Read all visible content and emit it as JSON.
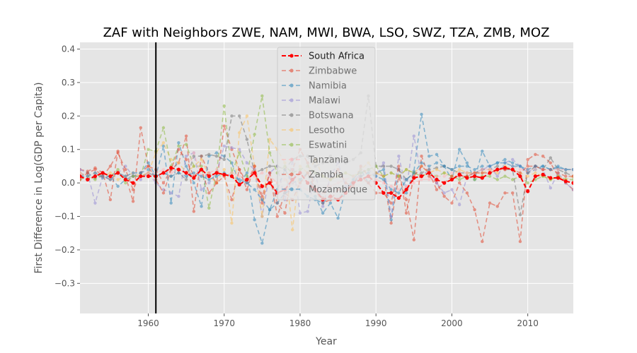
{
  "chart_data": {
    "type": "line",
    "title": "ZAF with Neighbors ZWE, NAM, MWI, BWA, LSO, SWZ, TZA, ZMB, MOZ",
    "xlabel": "Year",
    "ylabel": "First Difference in Log(GDP per Capita)",
    "xlim": [
      1951,
      2016
    ],
    "ylim": [
      -0.39,
      0.42
    ],
    "xticks": [
      1960,
      1970,
      1980,
      1990,
      2000,
      2010
    ],
    "yticks": [
      -0.3,
      -0.2,
      -0.1,
      0.0,
      0.1,
      0.2,
      0.3,
      0.4
    ],
    "xtick_labels": [
      "1960",
      "1970",
      "1980",
      "1990",
      "2000",
      "2010"
    ],
    "ytick_labels": [
      "−0.3",
      "−0.2",
      "−0.1",
      "0.0",
      "0.1",
      "0.2",
      "0.3",
      "0.4"
    ],
    "vline_x": 1961,
    "grid": true,
    "legend_position": "upper-center",
    "series": [
      {
        "name": "South Africa",
        "color": "#ff0000",
        "x_start": 1951,
        "values": [
          0.02,
          0.01,
          0.02,
          0.03,
          0.02,
          0.03,
          0.01,
          0.0,
          0.02,
          0.02,
          0.02,
          0.03,
          0.045,
          0.04,
          0.03,
          0.015,
          0.04,
          0.02,
          0.03,
          0.025,
          0.02,
          -0.005,
          0.01,
          0.03,
          -0.01,
          0.0,
          -0.03,
          -0.02,
          0.01,
          0.03,
          0.0,
          -0.02,
          -0.05,
          -0.04,
          -0.05,
          -0.03,
          0.0,
          0.01,
          0.02,
          0.0,
          -0.03,
          -0.03,
          -0.045,
          -0.02,
          0.015,
          0.02,
          0.03,
          0.01,
          0.0,
          0.01,
          0.025,
          0.015,
          0.02,
          0.015,
          0.03,
          0.04,
          0.045,
          0.04,
          0.02,
          -0.025,
          0.02,
          0.025,
          0.015,
          0.015,
          0.005,
          0.0
        ]
      },
      {
        "name": "Zimbabwe",
        "color": "#e24a33",
        "x_start": 1951,
        "values": [
          0.04,
          0.035,
          0.045,
          0.03,
          -0.05,
          0.095,
          0.02,
          -0.055,
          0.165,
          0.05,
          0.04,
          0.0,
          0.04,
          0.06,
          0.14,
          -0.085,
          0.08,
          0.03,
          0.0,
          0.17,
          0.1,
          0.04,
          0.0,
          0.05,
          -0.04,
          0.03,
          -0.06,
          -0.09,
          0.04,
          0.1,
          0.06,
          -0.02,
          -0.045,
          0.01,
          0.04,
          0.0,
          -0.01,
          0.05,
          0.02,
          0.03,
          0.02,
          -0.12,
          0.02,
          -0.05,
          -0.17,
          0.08,
          0.02,
          0.0,
          -0.04,
          -0.06,
          0.0,
          -0.03,
          -0.08,
          -0.175,
          -0.06,
          -0.07,
          -0.03,
          -0.03,
          -0.175,
          0.07,
          0.085,
          0.08,
          0.06,
          0.02,
          0.0,
          -0.02
        ]
      },
      {
        "name": "Namibia",
        "color": "#348abd",
        "x_start": 1951,
        "values": [
          0.03,
          0.02,
          0.03,
          0.015,
          0.02,
          -0.01,
          0.01,
          0.02,
          0.03,
          0.06,
          0.02,
          0.11,
          -0.06,
          0.12,
          0.05,
          0.0,
          -0.07,
          0.08,
          0.09,
          0.08,
          0.06,
          0.0,
          0.03,
          -0.11,
          -0.18,
          -0.08,
          -0.02,
          0.04,
          0.0,
          0.01,
          0.03,
          -0.04,
          -0.09,
          -0.06,
          -0.105,
          -0.02,
          0.01,
          0.04,
          0.0,
          0.03,
          0.04,
          -0.11,
          0.04,
          -0.03,
          0.035,
          0.205,
          0.08,
          0.085,
          0.05,
          0.01,
          0.1,
          0.06,
          0.01,
          0.095,
          0.05,
          0.06,
          0.07,
          0.06,
          0.05,
          0.03,
          0.04,
          0.05,
          0.04,
          0.045,
          0.04,
          0.04
        ]
      },
      {
        "name": "Malawi",
        "color": "#988ed5",
        "x_start": 1951,
        "values": [
          0.04,
          0.03,
          -0.06,
          0.02,
          0.01,
          0.03,
          0.05,
          0.02,
          0.01,
          0.03,
          0.0,
          -0.02,
          -0.03,
          -0.04,
          0.08,
          0.09,
          -0.02,
          0.0,
          0.03,
          0.11,
          0.105,
          0.1,
          0.06,
          0.04,
          -0.1,
          0.03,
          0.05,
          -0.05,
          0.07,
          -0.09,
          -0.085,
          0.03,
          -0.07,
          0.02,
          0.06,
          -0.01,
          0.0,
          0.03,
          0.04,
          0.02,
          0.06,
          -0.1,
          0.08,
          -0.02,
          0.14,
          0.02,
          0.04,
          0.0,
          -0.03,
          -0.02,
          -0.065,
          0.02,
          0.03,
          0.04,
          0.05,
          0.02,
          0.06,
          0.07,
          0.05,
          0.03,
          0.05,
          0.04,
          -0.015,
          0.03,
          0.0,
          -0.02
        ]
      },
      {
        "name": "Botswana",
        "color": "#777777",
        "x_start": 1951,
        "values": [
          0.02,
          0.03,
          0.015,
          0.02,
          0.01,
          0.03,
          0.015,
          0.02,
          0.02,
          0.03,
          0.02,
          0.03,
          0.02,
          0.03,
          0.01,
          0.08,
          0.08,
          0.085,
          0.08,
          0.07,
          0.2,
          0.2,
          0.13,
          0.03,
          0.04,
          0.05,
          0.05,
          0.04,
          0.07,
          0.08,
          0.08,
          0.05,
          0.06,
          0.08,
          0.07,
          0.06,
          0.07,
          0.09,
          0.26,
          0.05,
          0.05,
          0.05,
          0.04,
          0.01,
          0.03,
          0.03,
          0.04,
          0.045,
          0.05,
          0.04,
          0.03,
          0.03,
          0.03,
          0.04,
          0.04,
          0.05,
          0.04,
          0.04,
          -0.095,
          0.03,
          0.05,
          0.04,
          0.075,
          0.04,
          0.03,
          0.02
        ]
      },
      {
        "name": "Lesotho",
        "color": "#fbc15e",
        "x_start": 1951,
        "values": [
          0.03,
          0.02,
          0.03,
          0.02,
          0.03,
          0.01,
          0.02,
          0.03,
          0.02,
          0.03,
          0.09,
          0.12,
          0.07,
          0.06,
          0.03,
          0.05,
          0.07,
          0.02,
          0.0,
          0.04,
          -0.12,
          0.15,
          0.2,
          0.05,
          -0.1,
          0.13,
          0.1,
          0.06,
          -0.14,
          0.05,
          0.03,
          0.07,
          0.02,
          0.01,
          0.02,
          0.03,
          0.02,
          0.04,
          0.06,
          0.03,
          0.02,
          0.03,
          0.02,
          0.04,
          0.03,
          0.05,
          0.03,
          0.04,
          0.03,
          0.02,
          0.04,
          0.03,
          0.03,
          0.03,
          0.04,
          0.03,
          0.05,
          0.04,
          0.03,
          0.02,
          0.03,
          0.02,
          0.01,
          0.02,
          0.01,
          0.02
        ]
      },
      {
        "name": "Eswatini",
        "color": "#8eba42",
        "x_start": 1951,
        "values": [
          0.01,
          0.02,
          0.01,
          0.03,
          0.02,
          0.04,
          0.0,
          0.02,
          0.02,
          0.1,
          0.095,
          0.165,
          0.05,
          0.11,
          0.115,
          0.05,
          0.05,
          -0.075,
          0.03,
          0.23,
          0.03,
          0.09,
          0.02,
          0.145,
          0.26,
          0.09,
          0.03,
          0.05,
          0.03,
          0.04,
          0.05,
          0.03,
          0.02,
          0.01,
          0.02,
          0.03,
          0.02,
          0.03,
          0.04,
          0.05,
          0.02,
          0.03,
          0.02,
          0.04,
          0.03,
          0.02,
          0.03,
          0.02,
          0.03,
          0.02,
          0.01,
          0.02,
          0.01,
          0.02,
          0.02,
          0.01,
          0.02,
          0.01,
          0.02,
          0.0,
          0.01,
          0.02,
          0.01,
          0.02,
          0.01,
          0.01
        ]
      },
      {
        "name": "Tanzania",
        "color": "#ffb5b8",
        "x_start": 1951,
        "values": [
          0.03,
          0.02,
          0.03,
          0.02,
          0.02,
          0.03,
          0.02,
          0.03,
          0.02,
          0.03,
          0.03,
          0.04,
          0.03,
          0.04,
          0.03,
          0.09,
          0.02,
          0.03,
          0.04,
          0.02,
          0.03,
          0.02,
          0.01,
          0.02,
          0.03,
          0.02,
          0.0,
          0.01,
          0.0,
          -0.01,
          -0.02,
          -0.01,
          -0.03,
          -0.01,
          0.0,
          0.01,
          0.02,
          0.01,
          0.0,
          0.01,
          0.0,
          -0.01,
          -0.02,
          -0.01,
          0.0,
          0.01,
          0.01,
          0.02,
          0.02,
          0.03,
          0.03,
          0.03,
          0.03,
          0.04,
          0.04,
          0.04,
          0.04,
          0.05,
          0.04,
          0.04,
          0.04,
          0.04,
          0.04,
          0.04,
          0.04,
          0.04
        ]
      },
      {
        "name": "Zambia",
        "color": "#e24a33",
        "x_start": 1951,
        "values": [
          0.01,
          0.03,
          0.04,
          0.02,
          0.05,
          0.09,
          0.04,
          -0.02,
          0.03,
          0.05,
          0.01,
          -0.03,
          0.04,
          0.1,
          0.07,
          0.02,
          0.04,
          -0.03,
          0.0,
          0.02,
          -0.05,
          0.04,
          -0.02,
          0.05,
          -0.06,
          0.03,
          -0.1,
          -0.03,
          -0.05,
          0.0,
          0.03,
          -0.02,
          -0.06,
          -0.05,
          -0.02,
          -0.02,
          0.0,
          0.02,
          0.0,
          -0.03,
          -0.03,
          -0.06,
          0.05,
          -0.09,
          0.02,
          0.05,
          0.03,
          -0.02,
          0.0,
          0.02,
          0.02,
          0.02,
          0.03,
          0.03,
          0.03,
          0.04,
          0.04,
          0.04,
          0.03,
          0.05,
          0.05,
          0.04,
          0.04,
          0.03,
          0.02,
          0.02
        ]
      },
      {
        "name": "Mozambique",
        "color": "#348abd",
        "x_start": 1951,
        "values": [
          0.02,
          0.02,
          0.03,
          0.02,
          0.02,
          0.03,
          0.02,
          0.03,
          0.03,
          0.04,
          0.02,
          0.03,
          0.02,
          0.03,
          0.02,
          0.03,
          0.02,
          0.01,
          0.02,
          0.03,
          0.02,
          0.01,
          0.0,
          -0.02,
          -0.05,
          -0.08,
          -0.06,
          -0.03,
          -0.02,
          -0.02,
          -0.04,
          -0.05,
          -0.06,
          -0.04,
          -0.05,
          -0.02,
          0.0,
          0.02,
          0.03,
          0.02,
          0.01,
          -0.02,
          -0.03,
          0.01,
          0.03,
          0.06,
          0.05,
          0.06,
          0.05,
          0.04,
          0.05,
          0.05,
          0.04,
          0.05,
          0.05,
          0.06,
          0.06,
          0.05,
          0.05,
          0.04,
          0.05,
          0.05,
          0.04,
          0.05,
          0.04,
          0.04
        ]
      }
    ]
  }
}
